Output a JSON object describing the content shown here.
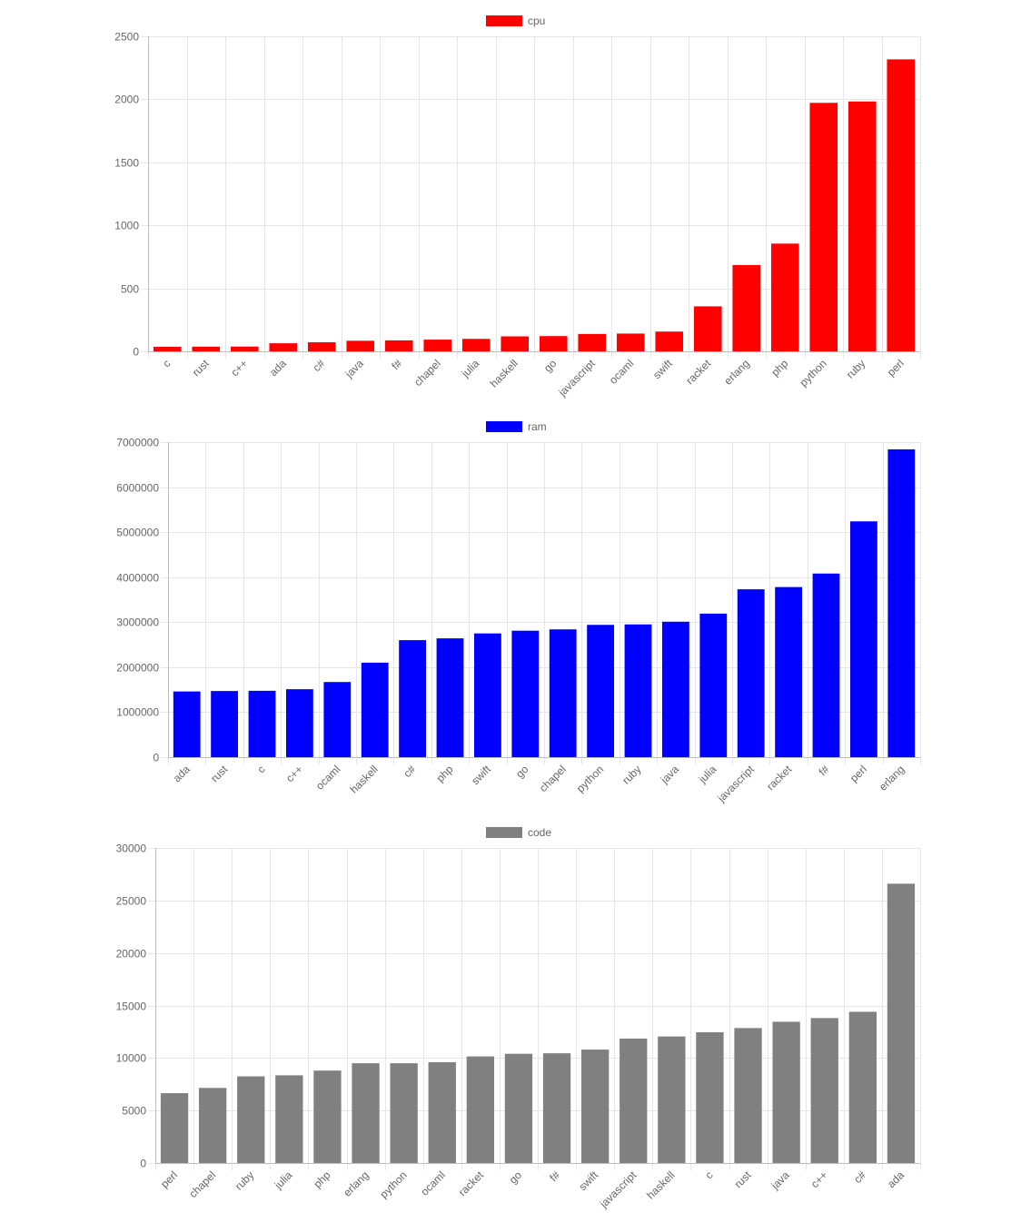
{
  "chart_data": [
    {
      "type": "bar",
      "series_name": "cpu",
      "color": "#ff0000",
      "categories": [
        "c",
        "rust",
        "c++",
        "ada",
        "c#",
        "java",
        "f#",
        "chapel",
        "julia",
        "haskell",
        "go",
        "javascript",
        "ocaml",
        "swift",
        "racket",
        "erlang",
        "php",
        "python",
        "ruby",
        "perl"
      ],
      "values": [
        36,
        37,
        38,
        64,
        72,
        84,
        87,
        93,
        99,
        119,
        121,
        138,
        141,
        157,
        357,
        685,
        855,
        1972,
        1983,
        2317
      ],
      "yticks": [
        0,
        500,
        1000,
        1500,
        2000,
        2500
      ],
      "ylim": [
        0,
        2500
      ],
      "grid": true,
      "legend": "top-center"
    },
    {
      "type": "bar",
      "series_name": "ram",
      "color": "#0000ff",
      "categories": [
        "ada",
        "rust",
        "c",
        "c++",
        "ocaml",
        "haskell",
        "c#",
        "php",
        "swift",
        "go",
        "chapel",
        "python",
        "ruby",
        "java",
        "julia",
        "javascript",
        "racket",
        "f#",
        "perl",
        "erlang"
      ],
      "values": [
        1460000,
        1470000,
        1475000,
        1510000,
        1670000,
        2100000,
        2600000,
        2640000,
        2750000,
        2810000,
        2840000,
        2940000,
        2950000,
        3010000,
        3190000,
        3730000,
        3780000,
        4080000,
        5240000,
        6840000
      ],
      "yticks": [
        0,
        1000000,
        2000000,
        3000000,
        4000000,
        5000000,
        6000000,
        7000000
      ],
      "ylim": [
        0,
        7000000
      ],
      "grid": true,
      "legend": "top-center"
    },
    {
      "type": "bar",
      "series_name": "code",
      "color": "#808080",
      "categories": [
        "perl",
        "chapel",
        "ruby",
        "julia",
        "php",
        "erlang",
        "python",
        "ocaml",
        "racket",
        "go",
        "f#",
        "swift",
        "javascript",
        "haskell",
        "c",
        "rust",
        "java",
        "c++",
        "c#",
        "ada"
      ],
      "values": [
        6650,
        7150,
        8250,
        8350,
        8800,
        9500,
        9500,
        9600,
        10150,
        10400,
        10450,
        10800,
        11850,
        12050,
        12450,
        12850,
        13450,
        13800,
        14400,
        26600
      ],
      "yticks": [
        0,
        5000,
        10000,
        15000,
        20000,
        25000,
        30000
      ],
      "ylim": [
        0,
        30000
      ],
      "grid": true,
      "legend": "top-center"
    }
  ]
}
